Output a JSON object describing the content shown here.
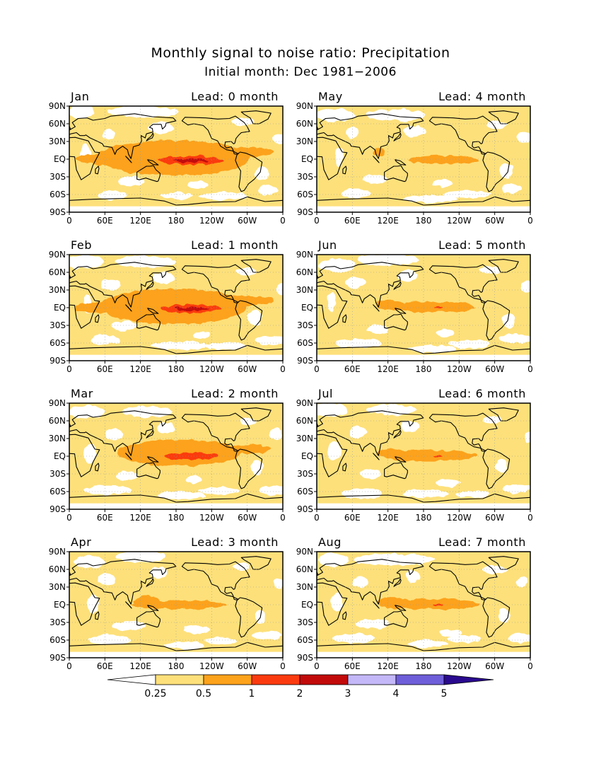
{
  "chart_data": {
    "type": "heatmap",
    "title": "Monthly signal to noise ratio: Precipitation",
    "subtitle": "Initial month: Dec 1981−2006",
    "lon_ticks": [
      "0",
      "60E",
      "120E",
      "180",
      "120W",
      "60W",
      "0"
    ],
    "lat_ticks": [
      "90N",
      "60N",
      "30N",
      "EQ",
      "30S",
      "60S",
      "90S"
    ],
    "colorbar": {
      "levels": [
        "0.25",
        "0.5",
        "1",
        "2",
        "3",
        "4",
        "5"
      ],
      "colors": [
        "#ffffff",
        "#fde07a",
        "#fca21b",
        "#fb3b0f",
        "#c20a0a",
        "#c4b8f8",
        "#6e5ed9",
        "#2a0a8f"
      ]
    },
    "panels": [
      {
        "month": "Jan",
        "lead": "Lead: 0 month",
        "col": 0,
        "row": 0
      },
      {
        "month": "May",
        "lead": "Lead: 4 month",
        "col": 1,
        "row": 0
      },
      {
        "month": "Feb",
        "lead": "Lead: 1 month",
        "col": 0,
        "row": 1
      },
      {
        "month": "Jun",
        "lead": "Lead: 5 month",
        "col": 1,
        "row": 1
      },
      {
        "month": "Mar",
        "lead": "Lead: 2 month",
        "col": 0,
        "row": 2
      },
      {
        "month": "Jul",
        "lead": "Lead: 6 month",
        "col": 1,
        "row": 2
      },
      {
        "month": "Apr",
        "lead": "Lead: 3 month",
        "col": 0,
        "row": 3
      },
      {
        "month": "Aug",
        "lead": "Lead: 7 month",
        "col": 1,
        "row": 3
      }
    ]
  }
}
